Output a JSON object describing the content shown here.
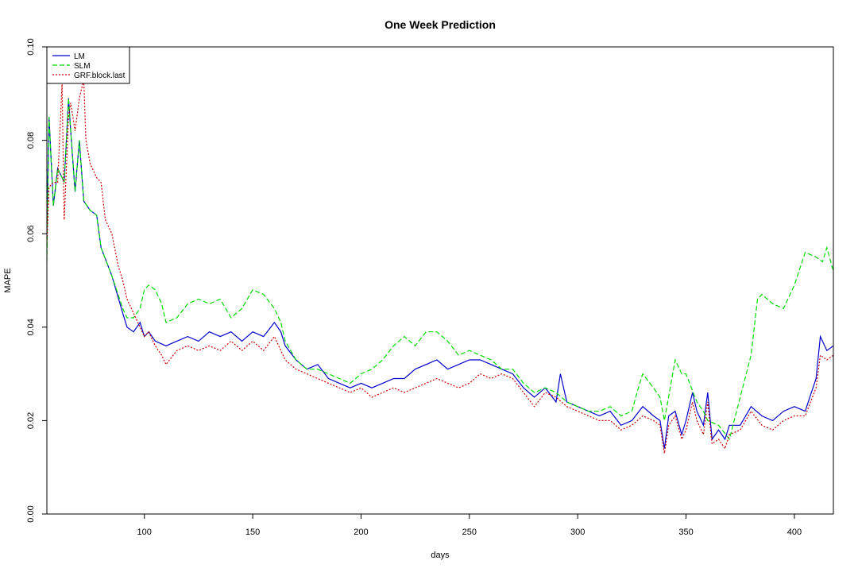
{
  "chart_data": {
    "type": "line",
    "title": "One Week Prediction",
    "xlabel": "days",
    "ylabel": "MAPE",
    "xlim": [
      55,
      418
    ],
    "ylim": [
      0.0,
      0.1
    ],
    "x_ticks": [
      100,
      150,
      200,
      250,
      300,
      350,
      400
    ],
    "y_ticks": [
      0.0,
      0.02,
      0.04,
      0.06,
      0.08,
      0.1
    ],
    "y_tick_labels": [
      "0.00",
      "0.02",
      "0.04",
      "0.06",
      "0.08",
      "0.10"
    ],
    "grid": false,
    "legend_position": "top-left",
    "series": [
      {
        "name": "LM",
        "color": "#0000cc",
        "dash": "solid",
        "x": [
          55,
          56,
          58,
          60,
          63,
          65,
          66,
          68,
          70,
          72,
          75,
          78,
          80,
          85,
          90,
          92,
          95,
          98,
          100,
          102,
          105,
          110,
          115,
          120,
          125,
          130,
          135,
          140,
          145,
          150,
          155,
          160,
          163,
          165,
          170,
          175,
          180,
          185,
          190,
          195,
          200,
          205,
          210,
          215,
          220,
          225,
          230,
          235,
          240,
          245,
          250,
          255,
          260,
          265,
          270,
          275,
          280,
          285,
          290,
          292,
          295,
          300,
          305,
          310,
          315,
          320,
          325,
          330,
          335,
          338,
          340,
          342,
          345,
          348,
          350,
          353,
          355,
          358,
          360,
          362,
          365,
          368,
          370,
          375,
          380,
          385,
          390,
          395,
          400,
          405,
          410,
          412,
          415,
          418
        ],
        "values": [
          0.06,
          0.085,
          0.066,
          0.074,
          0.071,
          0.089,
          0.082,
          0.069,
          0.08,
          0.067,
          0.065,
          0.064,
          0.057,
          0.051,
          0.043,
          0.04,
          0.039,
          0.041,
          0.038,
          0.039,
          0.037,
          0.036,
          0.037,
          0.038,
          0.037,
          0.039,
          0.038,
          0.039,
          0.037,
          0.039,
          0.038,
          0.041,
          0.039,
          0.036,
          0.033,
          0.031,
          0.032,
          0.029,
          0.028,
          0.027,
          0.028,
          0.027,
          0.028,
          0.029,
          0.029,
          0.031,
          0.032,
          0.033,
          0.031,
          0.032,
          0.033,
          0.033,
          0.032,
          0.031,
          0.03,
          0.027,
          0.025,
          0.027,
          0.024,
          0.03,
          0.024,
          0.023,
          0.022,
          0.021,
          0.022,
          0.019,
          0.02,
          0.023,
          0.021,
          0.02,
          0.014,
          0.021,
          0.022,
          0.017,
          0.02,
          0.026,
          0.022,
          0.019,
          0.026,
          0.016,
          0.018,
          0.016,
          0.019,
          0.019,
          0.023,
          0.021,
          0.02,
          0.022,
          0.023,
          0.022,
          0.029,
          0.038,
          0.035,
          0.036
        ]
      },
      {
        "name": "SLM",
        "color": "#00dd00",
        "dash": "dashed",
        "x": [
          55,
          56,
          58,
          60,
          63,
          65,
          66,
          68,
          70,
          72,
          75,
          78,
          80,
          85,
          90,
          92,
          95,
          98,
          100,
          102,
          105,
          108,
          110,
          115,
          120,
          125,
          130,
          135,
          140,
          145,
          150,
          155,
          160,
          163,
          165,
          170,
          175,
          180,
          185,
          190,
          195,
          200,
          205,
          210,
          215,
          220,
          225,
          230,
          235,
          240,
          245,
          250,
          255,
          260,
          265,
          270,
          275,
          280,
          285,
          290,
          295,
          300,
          305,
          310,
          315,
          320,
          325,
          328,
          330,
          335,
          338,
          340,
          345,
          348,
          350,
          355,
          358,
          360,
          365,
          370,
          375,
          380,
          383,
          385,
          390,
          395,
          400,
          405,
          410,
          413,
          415,
          418
        ],
        "values": [
          0.054,
          0.085,
          0.066,
          0.074,
          0.071,
          0.089,
          0.082,
          0.069,
          0.08,
          0.067,
          0.065,
          0.064,
          0.057,
          0.051,
          0.044,
          0.042,
          0.042,
          0.044,
          0.048,
          0.049,
          0.048,
          0.045,
          0.041,
          0.042,
          0.045,
          0.046,
          0.045,
          0.046,
          0.042,
          0.044,
          0.048,
          0.047,
          0.044,
          0.041,
          0.037,
          0.033,
          0.031,
          0.031,
          0.03,
          0.029,
          0.028,
          0.03,
          0.031,
          0.033,
          0.036,
          0.038,
          0.036,
          0.039,
          0.039,
          0.037,
          0.034,
          0.035,
          0.034,
          0.033,
          0.031,
          0.031,
          0.028,
          0.026,
          0.027,
          0.026,
          0.024,
          0.023,
          0.022,
          0.022,
          0.023,
          0.021,
          0.022,
          0.027,
          0.03,
          0.027,
          0.025,
          0.02,
          0.033,
          0.03,
          0.03,
          0.024,
          0.022,
          0.02,
          0.019,
          0.016,
          0.025,
          0.034,
          0.046,
          0.047,
          0.045,
          0.044,
          0.049,
          0.056,
          0.055,
          0.054,
          0.057,
          0.052
        ]
      },
      {
        "name": "GRF.block.last",
        "color": "#cc0000",
        "dash": "dotted",
        "x": [
          55,
          56,
          58,
          60,
          62,
          63,
          65,
          66,
          68,
          70,
          72,
          73,
          75,
          78,
          80,
          82,
          85,
          88,
          90,
          92,
          95,
          98,
          100,
          102,
          105,
          108,
          110,
          115,
          120,
          125,
          130,
          135,
          140,
          145,
          150,
          155,
          160,
          163,
          165,
          170,
          175,
          180,
          185,
          190,
          195,
          200,
          205,
          210,
          215,
          220,
          225,
          230,
          235,
          240,
          245,
          250,
          255,
          260,
          265,
          270,
          275,
          280,
          285,
          290,
          295,
          300,
          305,
          310,
          315,
          320,
          325,
          330,
          335,
          338,
          340,
          342,
          345,
          348,
          350,
          353,
          355,
          358,
          360,
          362,
          365,
          368,
          370,
          375,
          380,
          385,
          390,
          395,
          400,
          405,
          410,
          412,
          415,
          418
        ],
        "values": [
          0.058,
          0.07,
          0.071,
          0.071,
          0.092,
          0.063,
          0.085,
          0.088,
          0.082,
          0.089,
          0.093,
          0.08,
          0.075,
          0.072,
          0.071,
          0.063,
          0.06,
          0.053,
          0.05,
          0.046,
          0.043,
          0.04,
          0.038,
          0.039,
          0.036,
          0.034,
          0.032,
          0.035,
          0.036,
          0.035,
          0.036,
          0.035,
          0.037,
          0.035,
          0.037,
          0.035,
          0.038,
          0.035,
          0.033,
          0.031,
          0.03,
          0.029,
          0.028,
          0.027,
          0.026,
          0.027,
          0.025,
          0.026,
          0.027,
          0.026,
          0.027,
          0.028,
          0.029,
          0.028,
          0.027,
          0.028,
          0.03,
          0.029,
          0.03,
          0.029,
          0.026,
          0.023,
          0.026,
          0.025,
          0.023,
          0.022,
          0.021,
          0.02,
          0.02,
          0.018,
          0.019,
          0.021,
          0.02,
          0.019,
          0.013,
          0.019,
          0.021,
          0.016,
          0.018,
          0.024,
          0.02,
          0.017,
          0.024,
          0.015,
          0.016,
          0.014,
          0.017,
          0.018,
          0.022,
          0.019,
          0.018,
          0.02,
          0.021,
          0.021,
          0.027,
          0.034,
          0.033,
          0.034
        ]
      }
    ]
  }
}
